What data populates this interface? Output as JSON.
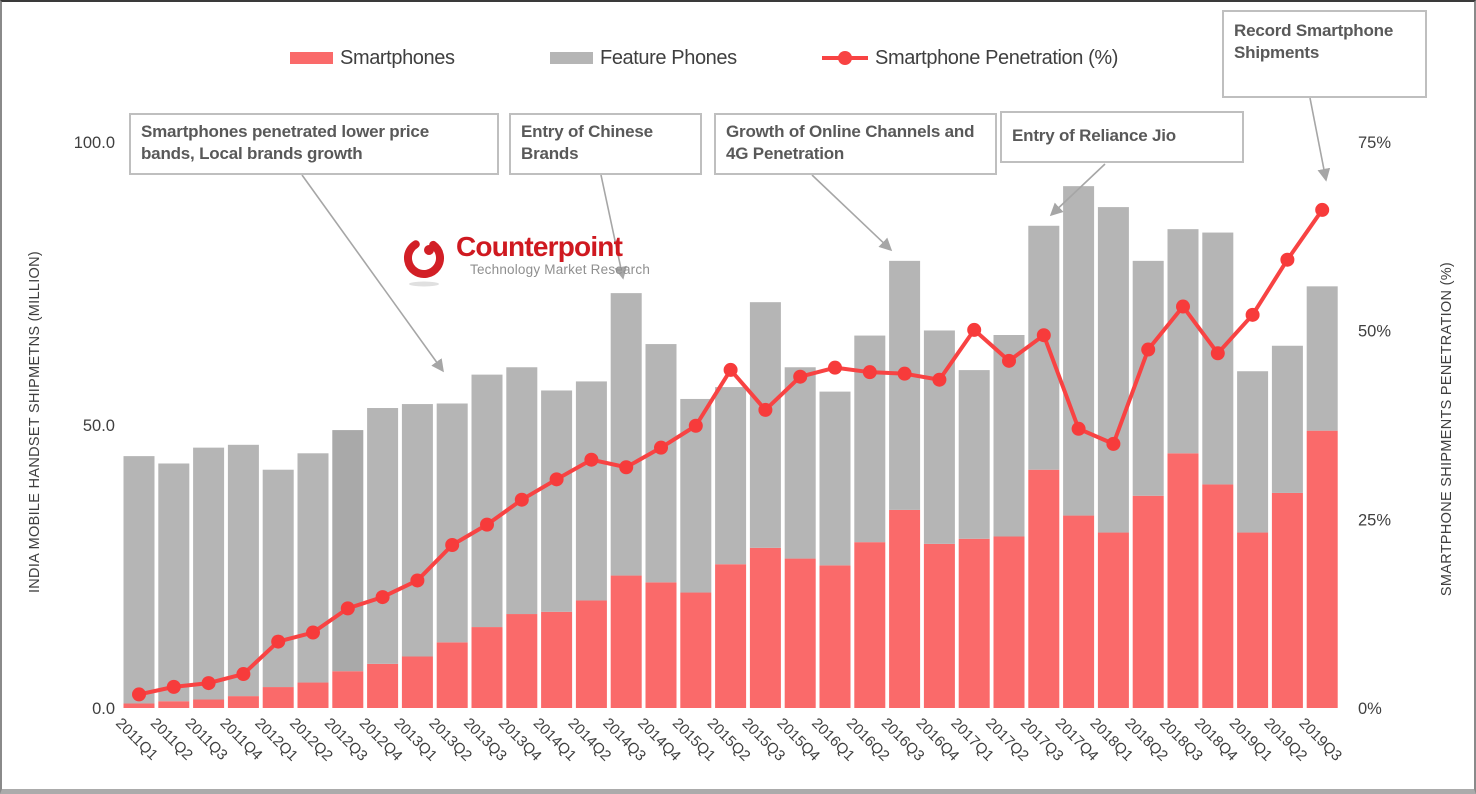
{
  "legend": {
    "items": [
      {
        "label": "Smartphones",
        "type": "swatch",
        "color": "#fa6a6a"
      },
      {
        "label": "Feature Phones",
        "type": "swatch",
        "color": "#b5b5b5"
      },
      {
        "label": "Smartphone Penetration (%)",
        "type": "line-marker",
        "color": "#f84343"
      }
    ]
  },
  "axes": {
    "left": {
      "title": "INDIA MOBILE HANDSET SHIPMETNS (MILLION)",
      "ticks": [
        {
          "label": "100.0",
          "value": 100
        },
        {
          "label": "50.0",
          "value": 50
        },
        {
          "label": "0.0",
          "value": 0
        }
      ]
    },
    "right": {
      "title": "SMARTPHONE SHIPMENTS PENETRATION (%)",
      "ticks": [
        {
          "label": "75%",
          "value": 75
        },
        {
          "label": "50%",
          "value": 50
        },
        {
          "label": "25%",
          "value": 25
        },
        {
          "label": "0%",
          "value": 0
        }
      ]
    }
  },
  "logo": {
    "brand": "Counterpoint",
    "tagline": "Technology Market Research",
    "brand_color": "#cf1920"
  },
  "annotations": [
    {
      "text": "Smartphones penetrated lower price bands, Local brands growth"
    },
    {
      "text": "Entry of Chinese Brands"
    },
    {
      "text": "Growth of Online Channels and 4G Penetration"
    },
    {
      "text": "Entry of Reliance Jio"
    },
    {
      "text": "Record Smartphone Shipments"
    }
  ],
  "colors": {
    "smartphone_bar": "#fa6a6a",
    "feature_bar": "#b5b5b5",
    "feature_bar_alt_2012Q3": "#a9a9a9",
    "penetration_line": "#f84343",
    "penetration_marker": "#f73b3b",
    "leader_line": "#a6a6a6",
    "tick_text": "#3f3f3f",
    "annotation_text": "#595959",
    "annotation_border": "#bfbfbf"
  },
  "chart_data": {
    "type": "bar",
    "subtype": "stacked-bars-with-line",
    "categories": [
      "2011Q1",
      "2011Q2",
      "2011Q3",
      "2011Q4",
      "2012Q1",
      "2012Q2",
      "2012Q3",
      "2012Q4",
      "2013Q1",
      "2013Q2",
      "2013Q3",
      "2013Q4",
      "2014Q1",
      "2014Q2",
      "2014Q3",
      "2014Q4",
      "2015Q1",
      "2015Q2",
      "2015Q3",
      "2015Q4",
      "2016Q1",
      "2016Q2",
      "2016Q3",
      "2016Q4",
      "2017Q1",
      "2017Q2",
      "2017Q3",
      "2017Q4",
      "2018Q1",
      "2018Q2",
      "2018Q3",
      "2018Q4",
      "2019Q1",
      "2019Q2",
      "2019Q3"
    ],
    "series": [
      {
        "name": "Smartphones",
        "axis": "left",
        "role": "stack-bottom",
        "values": [
          0.8,
          1.2,
          1.5,
          2.1,
          3.7,
          4.5,
          6.5,
          7.8,
          9.1,
          11.6,
          14.3,
          16.6,
          17.0,
          19.0,
          23.4,
          22.2,
          20.4,
          25.4,
          28.3,
          26.4,
          25.2,
          29.3,
          35.0,
          29.0,
          29.9,
          30.3,
          42.1,
          34.0,
          31.0,
          37.5,
          45.0,
          39.5,
          31.0,
          38.0,
          49.0
        ]
      },
      {
        "name": "Feature Phones",
        "axis": "left",
        "role": "stack-top",
        "values": [
          43.7,
          42.0,
          44.5,
          44.4,
          38.4,
          40.5,
          42.6,
          45.2,
          44.6,
          42.2,
          44.6,
          43.6,
          39.1,
          38.7,
          49.9,
          42.1,
          34.2,
          31.3,
          43.4,
          33.8,
          30.7,
          36.5,
          44.0,
          37.7,
          29.8,
          35.6,
          43.1,
          58.2,
          57.5,
          41.5,
          39.6,
          44.5,
          28.5,
          26.0,
          25.5
        ]
      },
      {
        "name": "Smartphone Penetration (%)",
        "axis": "right",
        "role": "line",
        "values": [
          1.8,
          2.8,
          3.3,
          4.5,
          8.8,
          10.0,
          13.2,
          14.7,
          16.9,
          21.6,
          24.3,
          27.6,
          30.3,
          32.9,
          31.9,
          34.5,
          37.4,
          44.8,
          39.5,
          43.9,
          45.1,
          44.5,
          44.3,
          43.5,
          50.1,
          46.0,
          49.4,
          37.0,
          35.0,
          47.5,
          53.2,
          47.0,
          52.1,
          59.4,
          66.0
        ]
      }
    ],
    "xlabel": "",
    "ylabel_left": "INDIA MOBILE HANDSET SHIPMETNS (MILLION)",
    "ylabel_right": "SMARTPHONE SHIPMENTS PENETRATION (%)",
    "ylim_left": [
      0,
      100
    ],
    "ylim_right": [
      0,
      75
    ],
    "grid": false,
    "legend_position": "top"
  }
}
